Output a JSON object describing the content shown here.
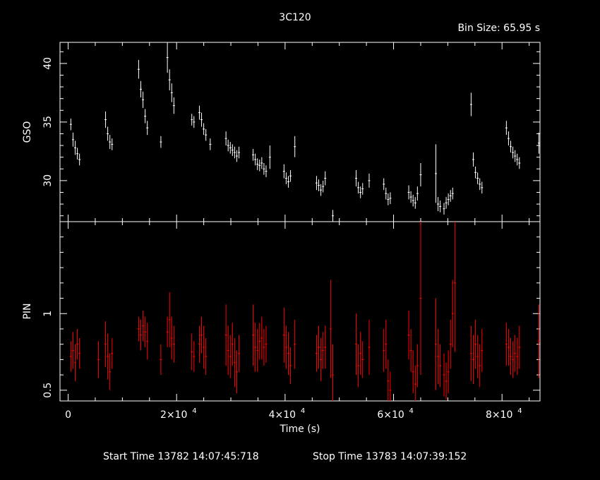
{
  "chart_data": [
    {
      "type": "scatter",
      "panel": "top",
      "title": "3C120",
      "subtitle": "Bin Size: 65.95 s",
      "ylabel": "GSO",
      "ylim": [
        26.5,
        41.8
      ],
      "xlim": [
        -1500,
        87000
      ],
      "yticks": [
        30,
        35,
        40
      ],
      "color": "#ffffff",
      "series": [
        {
          "x": [
            500,
            900,
            1300,
            1700,
            2100,
            6900,
            7300,
            7700,
            8100,
            13000,
            13400,
            13800,
            14200,
            14600,
            17100,
            18300,
            18700,
            19100,
            19500,
            22800,
            23200,
            24200,
            24600,
            25000,
            25400,
            26200,
            29100,
            29500,
            29900,
            30300,
            30700,
            31100,
            31500,
            34100,
            34500,
            34900,
            35300,
            35700,
            36100,
            36500,
            37200,
            39800,
            40200,
            40600,
            41000,
            41800,
            45800,
            46200,
            46600,
            47000,
            47400,
            48800,
            53100,
            53500,
            53900,
            54300,
            55500,
            58200,
            58600,
            59000,
            59400,
            62800,
            63200,
            63600,
            64000,
            64400,
            65000,
            67800,
            68200,
            68600,
            69300,
            69700,
            70100,
            70500,
            70900,
            74300,
            74700,
            75100,
            75500,
            75900,
            76300,
            80800,
            81200,
            81600,
            82000,
            82400,
            82800,
            83200,
            86800
          ],
          "y": [
            34.8,
            33.5,
            32.8,
            32.3,
            31.8,
            35.2,
            34.0,
            33.3,
            33.1,
            39.5,
            37.8,
            36.9,
            35.5,
            34.5,
            33.3,
            40.5,
            38.6,
            37.5,
            36.4,
            35.2,
            35.0,
            35.8,
            35.2,
            34.4,
            33.9,
            33.1,
            33.6,
            33.0,
            32.8,
            32.6,
            32.4,
            32.1,
            32.4,
            32.2,
            31.8,
            31.4,
            31.3,
            31.5,
            31.0,
            30.8,
            32.0,
            30.8,
            30.2,
            29.9,
            30.4,
            32.9,
            29.8,
            29.6,
            29.2,
            29.5,
            30.2,
            27.0,
            30.2,
            29.4,
            29.0,
            29.3,
            30.0,
            29.7,
            28.9,
            28.4,
            28.5,
            29.0,
            28.6,
            28.3,
            28.1,
            28.9,
            30.5,
            30.6,
            28.0,
            27.8,
            27.6,
            28.1,
            28.4,
            28.7,
            28.9,
            36.5,
            31.8,
            30.7,
            30.2,
            29.7,
            29.4,
            34.5,
            33.6,
            32.9,
            32.4,
            32.1,
            31.8,
            31.5,
            33.2
          ],
          "yerr": [
            0.5,
            0.6,
            0.6,
            0.5,
            0.5,
            0.7,
            0.6,
            0.6,
            0.5,
            0.8,
            0.7,
            0.7,
            0.6,
            0.6,
            0.5,
            1.3,
            0.9,
            0.8,
            0.7,
            0.5,
            0.5,
            0.6,
            0.6,
            0.5,
            0.5,
            0.5,
            0.6,
            0.5,
            0.5,
            0.5,
            0.5,
            0.5,
            0.5,
            0.5,
            0.5,
            0.5,
            0.5,
            0.5,
            0.5,
            0.5,
            1.0,
            0.6,
            0.5,
            0.5,
            0.5,
            0.9,
            0.6,
            0.5,
            0.5,
            0.5,
            0.6,
            0.5,
            0.7,
            0.5,
            0.5,
            0.5,
            0.6,
            0.5,
            0.5,
            0.5,
            0.5,
            0.6,
            0.5,
            0.5,
            0.5,
            0.6,
            1.0,
            2.5,
            0.6,
            0.5,
            0.5,
            0.5,
            0.5,
            0.5,
            0.5,
            1.0,
            0.6,
            0.5,
            0.5,
            0.5,
            0.5,
            0.6,
            0.6,
            0.5,
            0.5,
            0.5,
            0.5,
            0.5,
            0.9
          ]
        }
      ]
    },
    {
      "type": "scatter",
      "panel": "bottom",
      "ylabel": "PIN",
      "xlabel": "Time (s)",
      "ylim": [
        0.43,
        1.6
      ],
      "xlim": [
        -1500,
        87000
      ],
      "yticks": [
        0.5,
        1
      ],
      "ytick_labels": [
        "0.5",
        "1"
      ],
      "xticks": [
        0,
        20000,
        40000,
        60000,
        80000
      ],
      "xtick_labels": [
        "0",
        "2×10",
        "4×10",
        "6×10",
        "8×10"
      ],
      "xtick_exponent": "4",
      "color": "#ff0000",
      "series": [
        {
          "x": [
            500,
            900,
            1300,
            1700,
            2100,
            5600,
            6900,
            7300,
            7700,
            8100,
            13000,
            13400,
            13800,
            14200,
            14600,
            17100,
            18300,
            18700,
            19100,
            19500,
            22800,
            23200,
            24200,
            24600,
            25000,
            25400,
            29100,
            29500,
            29900,
            30300,
            30700,
            31100,
            31500,
            34100,
            34500,
            34900,
            35300,
            35700,
            36100,
            36500,
            39800,
            40200,
            40600,
            41000,
            41800,
            45800,
            46200,
            46600,
            47000,
            47400,
            48400,
            48800,
            53100,
            53500,
            53900,
            54300,
            55500,
            58200,
            58600,
            59000,
            59400,
            62800,
            63200,
            63600,
            64000,
            64400,
            65000,
            67800,
            68200,
            68600,
            69300,
            69700,
            70100,
            70500,
            70900,
            71300,
            74300,
            74700,
            75100,
            75500,
            75900,
            76300,
            80800,
            81200,
            81600,
            82000,
            82400,
            82800,
            83200,
            86800
          ],
          "y": [
            0.72,
            0.76,
            0.68,
            0.8,
            0.74,
            0.7,
            0.8,
            0.72,
            0.62,
            0.74,
            0.9,
            0.86,
            0.92,
            0.88,
            0.82,
            0.7,
            0.88,
            0.96,
            0.84,
            0.8,
            0.75,
            0.72,
            0.8,
            0.86,
            0.78,
            0.72,
            0.86,
            0.76,
            0.72,
            0.8,
            0.68,
            0.62,
            0.74,
            0.86,
            0.78,
            0.76,
            0.82,
            0.84,
            0.78,
            0.8,
            0.86,
            0.78,
            0.74,
            0.66,
            0.8,
            0.74,
            0.78,
            0.7,
            0.76,
            0.78,
            0.9,
            0.6,
            0.8,
            0.66,
            0.74,
            0.7,
            0.78,
            0.76,
            0.8,
            0.56,
            0.5,
            0.86,
            0.76,
            0.62,
            0.54,
            0.66,
            1.1,
            0.8,
            0.72,
            0.66,
            0.6,
            0.56,
            0.62,
            0.8,
            1.0,
            1.2,
            0.74,
            0.7,
            0.8,
            0.72,
            0.66,
            0.76,
            0.8,
            0.78,
            0.72,
            0.7,
            0.74,
            0.72,
            0.78,
            0.82
          ],
          "yerr": [
            0.1,
            0.12,
            0.12,
            0.1,
            0.1,
            0.12,
            0.15,
            0.15,
            0.12,
            0.1,
            0.08,
            0.1,
            0.1,
            0.1,
            0.12,
            0.1,
            0.1,
            0.18,
            0.14,
            0.12,
            0.12,
            0.1,
            0.12,
            0.12,
            0.14,
            0.12,
            0.2,
            0.16,
            0.14,
            0.14,
            0.16,
            0.14,
            0.12,
            0.2,
            0.16,
            0.14,
            0.12,
            0.14,
            0.12,
            0.12,
            0.18,
            0.14,
            0.14,
            0.12,
            0.16,
            0.12,
            0.14,
            0.14,
            0.12,
            0.14,
            0.32,
            0.2,
            0.2,
            0.14,
            0.14,
            0.12,
            0.18,
            0.14,
            0.16,
            0.14,
            0.12,
            0.16,
            0.14,
            0.14,
            0.12,
            0.14,
            0.5,
            0.3,
            0.18,
            0.14,
            0.14,
            0.12,
            0.14,
            0.16,
            0.22,
            0.45,
            0.18,
            0.16,
            0.16,
            0.14,
            0.14,
            0.14,
            0.14,
            0.12,
            0.12,
            0.12,
            0.12,
            0.12,
            0.14,
            0.24
          ]
        }
      ]
    }
  ],
  "footer": {
    "start_label": "Start Time 13782 14:07:45:718",
    "stop_label": "Stop Time 13783 14:07:39:152"
  }
}
